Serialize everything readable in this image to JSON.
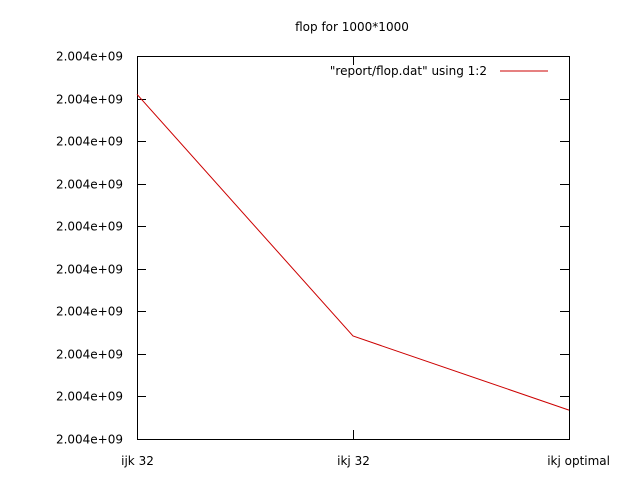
{
  "chart_data": {
    "type": "line",
    "title": "flop for 1000*1000",
    "xlabel": "",
    "ylabel": "",
    "categories": [
      "ijk 32",
      "ikj 32",
      "ikj optimal"
    ],
    "yticks": [
      {
        "value": 0,
        "label": "2.004e+09"
      },
      {
        "value": 1,
        "label": "2.004e+09"
      },
      {
        "value": 2,
        "label": "2.004e+09"
      },
      {
        "value": 3,
        "label": "2.004e+09"
      },
      {
        "value": 4,
        "label": "2.004e+09"
      },
      {
        "value": 5,
        "label": "2.004e+09"
      },
      {
        "value": 6,
        "label": "2.004e+09"
      },
      {
        "value": 7,
        "label": "2.004e+09"
      },
      {
        "value": 8,
        "label": "2.004e+09"
      },
      {
        "value": 9,
        "label": "2.004e+09"
      }
    ],
    "ylim": [
      0,
      9
    ],
    "grid": false,
    "legend_position": "top-right",
    "series": [
      {
        "name": "\"report/flop.dat\" using 1:2",
        "color": "#cc0000",
        "values": [
          8.1,
          2.42,
          0.68
        ]
      }
    ]
  }
}
